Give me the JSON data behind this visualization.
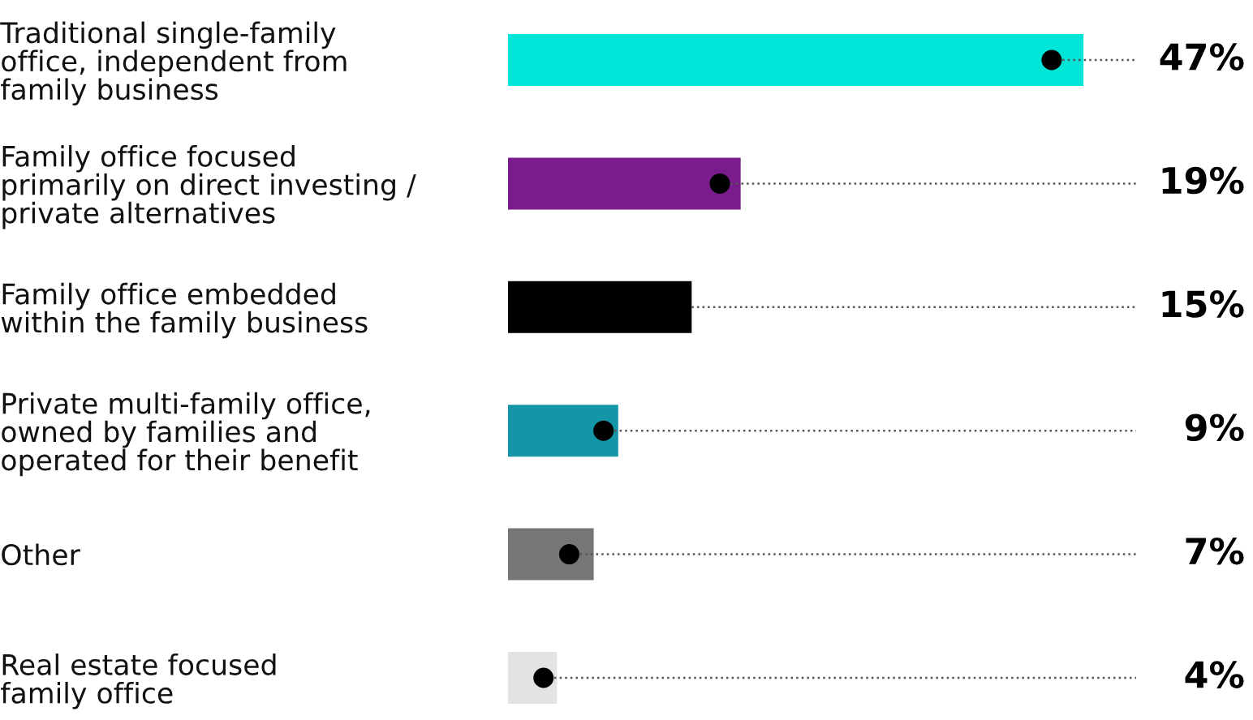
{
  "chart_data": {
    "type": "bar",
    "orientation": "horizontal",
    "categories": [
      "Traditional single-family\noffice, independent from\nfamily business",
      "Family office focused\nprimarily on direct investing /\nprivate alternatives",
      "Family office embedded\nwithin the family business",
      "Private multi-family office,\nowned by families and\noperated for their benefit",
      "Other",
      "Real estate focused\nfamily office"
    ],
    "series": [
      {
        "colors": [
          "#00e5d8",
          "#7b1c8c",
          "#000000",
          "#1495a8",
          "#767676",
          "#e3e3e3"
        ],
        "values": [
          47,
          19,
          15,
          9,
          7,
          4
        ],
        "value_labels": [
          "47%",
          "19%",
          "15%",
          "9%",
          "7%",
          "4%"
        ]
      },
      {
        "type": "scatter",
        "color": "#000000",
        "values": [
          44.4,
          17.3,
          null,
          7.8,
          5.0,
          2.9
        ],
        "marker": "circle",
        "line_style": "dotted"
      }
    ],
    "xlim": [
      0,
      51.3
    ],
    "tick_labels": "y",
    "grid": false,
    "legend": false
  }
}
